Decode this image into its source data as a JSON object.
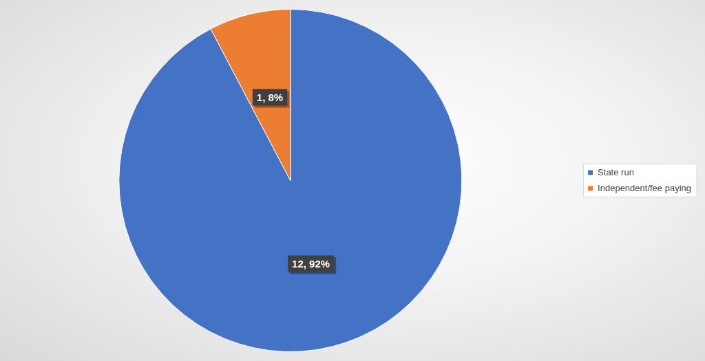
{
  "chart_data": {
    "type": "pie",
    "categories": [
      "State run",
      "Independent/fee paying"
    ],
    "values": [
      12,
      1
    ],
    "colors": [
      "#4472c4",
      "#ed7d31"
    ],
    "value_labels": [
      "12, 92%",
      "1, 8%"
    ],
    "legend": "right"
  }
}
